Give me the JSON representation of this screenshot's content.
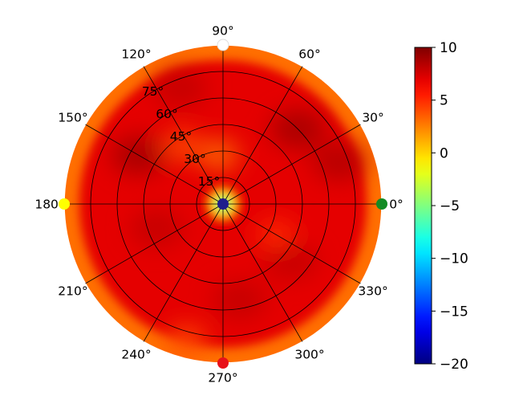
{
  "chart_data": {
    "type": "heatmap",
    "projection": "polar",
    "title": "",
    "angle_ticks": [
      "0°",
      "30°",
      "60°",
      "90°",
      "120°",
      "150°",
      "180°",
      "210°",
      "240°",
      "270°",
      "300°",
      "330°"
    ],
    "angle_tick_values_deg": [
      0,
      30,
      60,
      90,
      120,
      150,
      180,
      210,
      240,
      270,
      300,
      330
    ],
    "radial_ticks": [
      "15°",
      "30°",
      "45°",
      "60°",
      "75°"
    ],
    "radial_tick_values_deg": [
      15,
      30,
      45,
      60,
      75
    ],
    "radial_range_deg": [
      0,
      90
    ],
    "grid": true,
    "colormap": "jet",
    "colorbar": {
      "range": [
        -20,
        10
      ],
      "ticks": [
        10,
        5,
        0,
        -5,
        -10,
        -15,
        -20
      ],
      "tick_labels": [
        "10",
        "5",
        "0",
        "−5",
        "−10",
        "−15",
        "−20"
      ],
      "placement": "right"
    },
    "field_summary": {
      "center_value": -20,
      "near_center_ring_value": 0,
      "bulk_value": 7,
      "hot_spots": [
        {
          "angle_deg": 150,
          "radius_deg": 55,
          "value": 9
        },
        {
          "angle_deg": 45,
          "radius_deg": 60,
          "value": 9
        },
        {
          "angle_deg": 20,
          "radius_deg": 70,
          "value": 8.5
        },
        {
          "angle_deg": 200,
          "radius_deg": 40,
          "value": 8
        },
        {
          "angle_deg": 280,
          "radius_deg": 55,
          "value": 8
        },
        {
          "angle_deg": 320,
          "radius_deg": 50,
          "value": 8
        },
        {
          "angle_deg": 110,
          "radius_deg": 70,
          "value": 8
        }
      ],
      "cool_spots": [
        {
          "angle_deg": 95,
          "radius_deg": 28,
          "value": 3
        },
        {
          "angle_deg": 125,
          "radius_deg": 40,
          "value": 4
        },
        {
          "angle_deg": 255,
          "radius_deg": 80,
          "value": 4
        },
        {
          "angle_deg": 330,
          "radius_deg": 35,
          "value": 5
        }
      ],
      "edge_value": 3
    },
    "markers": [
      {
        "angle_deg": 0,
        "radius_deg": 90,
        "value": -10,
        "color": "#138b24"
      },
      {
        "angle_deg": 90,
        "radius_deg": 90,
        "value": 2,
        "color": "#ffffff"
      },
      {
        "angle_deg": 180,
        "radius_deg": 90,
        "value": 2,
        "color": "#ffff00"
      },
      {
        "angle_deg": 270,
        "radius_deg": 90,
        "value": 8,
        "color": "#e8111a"
      },
      {
        "angle_deg": 0,
        "radius_deg": 0,
        "value": -20,
        "color": "#1f1f8c"
      }
    ]
  }
}
